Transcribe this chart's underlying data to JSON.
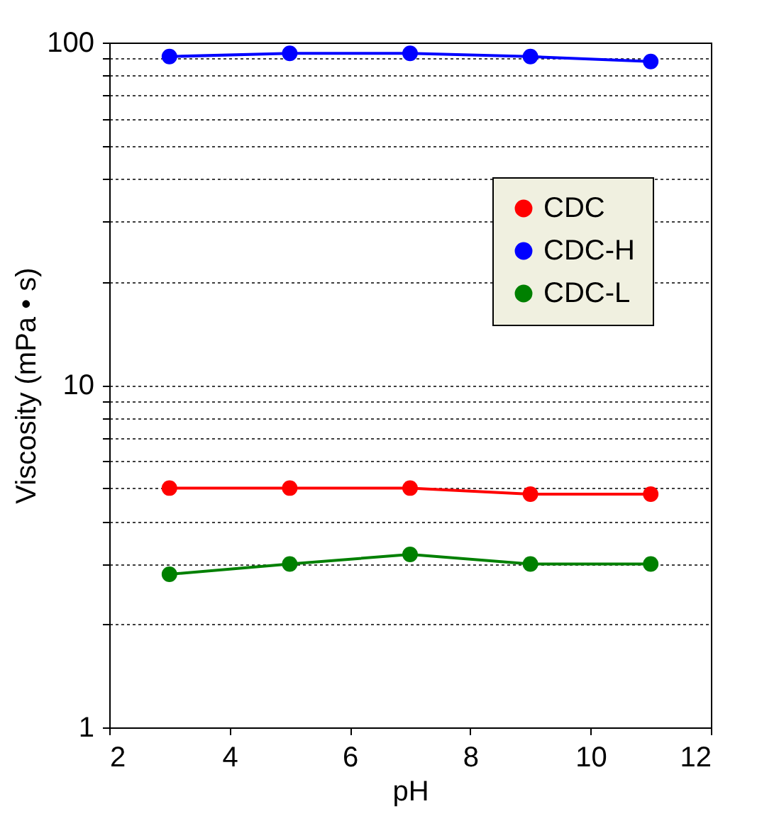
{
  "chart_data": {
    "type": "line",
    "xlabel": "pH",
    "ylabel": "Viscosity (mPa • s)",
    "x": [
      3,
      5,
      7,
      9,
      11
    ],
    "series": [
      {
        "name": "CDC",
        "color": "#ff0000",
        "values": [
          5.0,
          5.0,
          5.0,
          4.8,
          4.8
        ]
      },
      {
        "name": "CDC-H",
        "color": "#0000ff",
        "values": [
          91,
          93,
          93,
          91,
          88
        ]
      },
      {
        "name": "CDC-L",
        "color": "#008000",
        "values": [
          2.8,
          3.0,
          3.2,
          3.0,
          3.0
        ]
      }
    ],
    "log": "y",
    "xlim": [
      2,
      12
    ],
    "xticks": [
      2,
      4,
      6,
      8,
      10,
      12
    ],
    "ylim": [
      1,
      100
    ],
    "yticks": [
      1,
      {
        "value": 2,
        "label": null
      },
      {
        "value": 3,
        "label": null
      },
      {
        "value": 4,
        "label": null
      },
      {
        "value": 5,
        "label": null
      },
      {
        "value": 6,
        "label": null
      },
      {
        "value": 7,
        "label": null
      },
      {
        "value": 8,
        "label": null
      },
      {
        "value": 9,
        "label": null
      },
      10,
      {
        "value": 20,
        "label": null
      },
      {
        "value": 30,
        "label": null
      },
      {
        "value": 40,
        "label": null
      },
      {
        "value": 50,
        "label": null
      },
      {
        "value": 60,
        "label": null
      },
      {
        "value": 70,
        "label": null
      },
      {
        "value": 80,
        "label": null
      },
      {
        "value": 90,
        "label": null
      },
      100
    ],
    "grid": "y",
    "legend": "top right",
    "marker": "circle",
    "line_style": "solid"
  }
}
